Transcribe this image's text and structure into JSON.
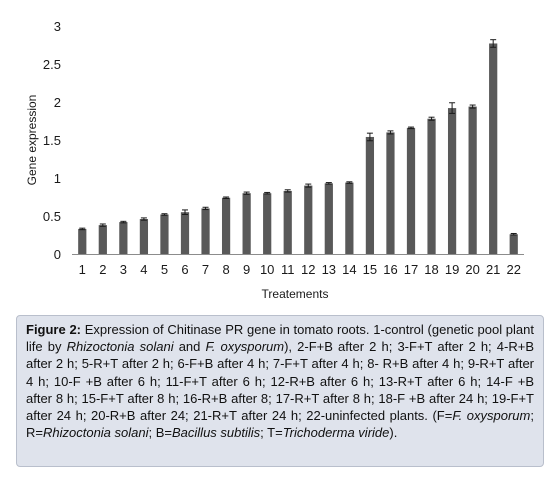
{
  "chart_data": {
    "type": "bar",
    "title": "",
    "xlabel": "Treatements",
    "ylabel": "Gene expression",
    "ylim": [
      0,
      3
    ],
    "yticks": [
      0,
      0.5,
      1,
      1.5,
      2,
      2.5,
      3
    ],
    "ytick_labels": [
      "0",
      "0.5",
      "1",
      "1.5",
      "2",
      "2.5",
      "3"
    ],
    "grid": false,
    "legend": "none",
    "bar_color": "#595959",
    "categories": [
      "1",
      "2",
      "3",
      "4",
      "5",
      "6",
      "7",
      "8",
      "9",
      "10",
      "11",
      "12",
      "13",
      "14",
      "15",
      "16",
      "17",
      "18",
      "19",
      "20",
      "21",
      "22"
    ],
    "values": [
      0.33,
      0.38,
      0.42,
      0.46,
      0.52,
      0.55,
      0.6,
      0.74,
      0.8,
      0.8,
      0.83,
      0.9,
      0.93,
      0.94,
      1.54,
      1.6,
      1.66,
      1.78,
      1.92,
      1.94,
      2.77,
      0.26
    ],
    "errors": [
      0.01,
      0.015,
      0.01,
      0.015,
      0.01,
      0.03,
      0.015,
      0.01,
      0.015,
      0.01,
      0.015,
      0.02,
      0.01,
      0.01,
      0.05,
      0.02,
      0.01,
      0.02,
      0.07,
      0.02,
      0.05,
      0.01
    ]
  },
  "caption": {
    "label": "Figure 2:",
    "segments": [
      {
        "t": " Expression of Chitinase PR gene in tomato roots. 1-control (genetic pool plant life by ",
        "i": false
      },
      {
        "t": "Rhizoctonia solani",
        "i": true
      },
      {
        "t": " and ",
        "i": false
      },
      {
        "t": "F. oxysporum",
        "i": true
      },
      {
        "t": "), 2-F+B after 2 h; 3-F+T after 2 h; 4-R+B after 2 h; 5-R+T after 2 h; 6-F+B after 4 h; 7-F+T after 4 h; 8- R+B after 4 h; 9-R+T after 4 h; 10-F +B after 6 h; 11-F+T after 6 h; 12-R+B after 6 h; 13-R+T after 6 h; 14-F +B after 8 h; 15-F+T after 8 h; 16-R+B after 8; 17-R+T after 8 h; 18-F +B after 24 h; 19-F+T after 24 h; 20-R+B after 24; 21-R+T after 24 h; 22-uninfected plants. (F=",
        "i": false
      },
      {
        "t": "F. oxysporum",
        "i": true
      },
      {
        "t": "; R=",
        "i": false
      },
      {
        "t": "Rhizoctonia solani",
        "i": true
      },
      {
        "t": "; B=",
        "i": false
      },
      {
        "t": "Bacillus subtilis",
        "i": true
      },
      {
        "t": "; T=",
        "i": false
      },
      {
        "t": "Trichoderma viride",
        "i": true
      },
      {
        "t": ").",
        "i": false
      }
    ]
  }
}
